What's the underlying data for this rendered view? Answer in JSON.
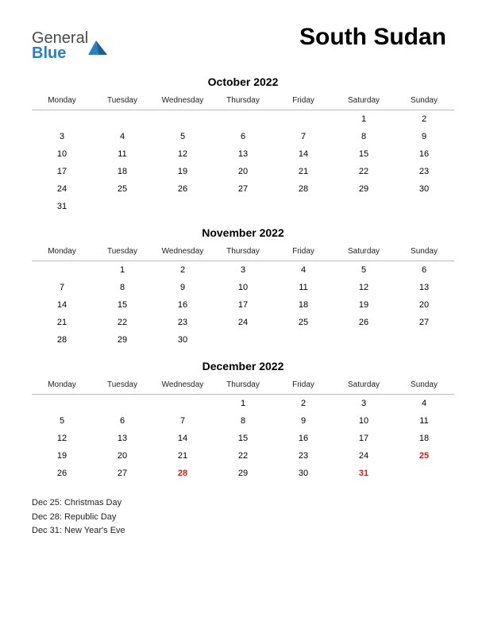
{
  "logo": {
    "general": "General",
    "blue": "Blue"
  },
  "title": "South Sudan",
  "daynames": [
    "Monday",
    "Tuesday",
    "Wednesday",
    "Thursday",
    "Friday",
    "Saturday",
    "Sunday"
  ],
  "holiday_color": "#d02020",
  "text_color": "#000000",
  "months": [
    {
      "title": "October 2022",
      "weeks": [
        [
          "",
          "",
          "",
          "",
          "",
          "1",
          "2"
        ],
        [
          "3",
          "4",
          "5",
          "6",
          "7",
          "8",
          "9"
        ],
        [
          "10",
          "11",
          "12",
          "13",
          "14",
          "15",
          "16"
        ],
        [
          "17",
          "18",
          "19",
          "20",
          "21",
          "22",
          "23"
        ],
        [
          "24",
          "25",
          "26",
          "27",
          "28",
          "29",
          "30"
        ],
        [
          "31",
          "",
          "",
          "",
          "",
          "",
          ""
        ]
      ],
      "holidays_idx": []
    },
    {
      "title": "November 2022",
      "weeks": [
        [
          "",
          "1",
          "2",
          "3",
          "4",
          "5",
          "6"
        ],
        [
          "7",
          "8",
          "9",
          "10",
          "11",
          "12",
          "13"
        ],
        [
          "14",
          "15",
          "16",
          "17",
          "18",
          "19",
          "20"
        ],
        [
          "21",
          "22",
          "23",
          "24",
          "25",
          "26",
          "27"
        ],
        [
          "28",
          "29",
          "30",
          "",
          "",
          "",
          ""
        ]
      ],
      "holidays_idx": []
    },
    {
      "title": "December 2022",
      "weeks": [
        [
          "",
          "",
          "",
          "1",
          "2",
          "3",
          "4"
        ],
        [
          "5",
          "6",
          "7",
          "8",
          "9",
          "10",
          "11"
        ],
        [
          "12",
          "13",
          "14",
          "15",
          "16",
          "17",
          "18"
        ],
        [
          "19",
          "20",
          "21",
          "22",
          "23",
          "24",
          "25"
        ],
        [
          "26",
          "27",
          "28",
          "29",
          "30",
          "31",
          ""
        ]
      ],
      "holidays_idx": [
        [
          3,
          6
        ],
        [
          4,
          2
        ],
        [
          4,
          5
        ]
      ]
    }
  ],
  "holiday_list": [
    "Dec 25: Christmas Day",
    "Dec 28: Republic Day",
    "Dec 31: New Year's Eve"
  ]
}
